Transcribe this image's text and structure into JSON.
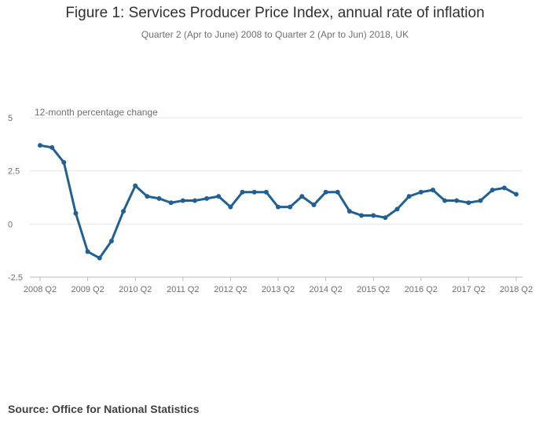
{
  "title": "Figure 1: Services Producer Price Index, annual rate of inflation",
  "subtitle": "Quarter 2 (Apr to June) 2008 to Quarter 2 (Apr to Jun) 2018, UK",
  "source": "Source: Office for National Statistics",
  "colors": {
    "series": "#206095",
    "grid": "#e6e6e6",
    "text": "#707070"
  },
  "chart_data": {
    "type": "line",
    "title": "Figure 1: Services Producer Price Index, annual rate of inflation",
    "ylabel": "12-month percentage change",
    "xlabel": "",
    "ylim": [
      -2.5,
      5
    ],
    "yticks": [
      -2.5,
      0,
      2.5,
      5
    ],
    "ytick_labels": [
      "-2.5",
      "0",
      "2.5",
      "5"
    ],
    "xtick_labels": [
      "2008 Q2",
      "2009 Q2",
      "2010 Q2",
      "2011 Q2",
      "2012 Q2",
      "2013 Q2",
      "2014 Q2",
      "2015 Q2",
      "2016 Q2",
      "2017 Q2",
      "2018 Q2"
    ],
    "grid": true,
    "x": [
      "2008 Q2",
      "2008 Q3",
      "2008 Q4",
      "2009 Q1",
      "2009 Q2",
      "2009 Q3",
      "2009 Q4",
      "2010 Q1",
      "2010 Q2",
      "2010 Q3",
      "2010 Q4",
      "2011 Q1",
      "2011 Q2",
      "2011 Q3",
      "2011 Q4",
      "2012 Q1",
      "2012 Q2",
      "2012 Q3",
      "2012 Q4",
      "2013 Q1",
      "2013 Q2",
      "2013 Q3",
      "2013 Q4",
      "2014 Q1",
      "2014 Q2",
      "2014 Q3",
      "2014 Q4",
      "2015 Q1",
      "2015 Q2",
      "2015 Q3",
      "2015 Q4",
      "2016 Q1",
      "2016 Q2",
      "2016 Q3",
      "2016 Q4",
      "2017 Q1",
      "2017 Q2",
      "2017 Q3",
      "2017 Q4",
      "2018 Q1",
      "2018 Q2"
    ],
    "series": [
      {
        "name": "Services Producer Price Index, annual rate of inflation",
        "values": [
          3.7,
          3.6,
          2.9,
          0.5,
          -1.3,
          -1.6,
          -0.8,
          0.6,
          1.8,
          1.3,
          1.2,
          1.0,
          1.1,
          1.1,
          1.2,
          1.3,
          0.8,
          1.5,
          1.5,
          1.5,
          0.8,
          0.8,
          1.3,
          0.9,
          1.5,
          1.5,
          0.6,
          0.4,
          0.4,
          0.3,
          0.7,
          1.3,
          1.5,
          1.6,
          1.1,
          1.1,
          1.0,
          1.1,
          1.6,
          1.7,
          1.4
        ]
      }
    ]
  }
}
